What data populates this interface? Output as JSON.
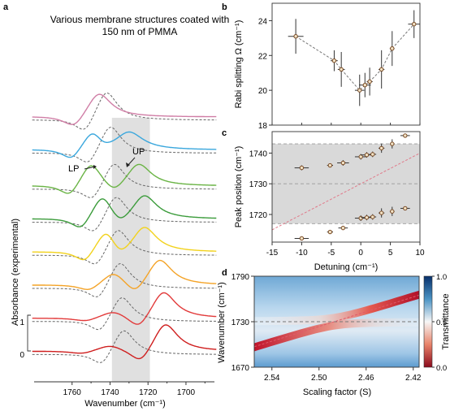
{
  "panels": {
    "a": "a",
    "b": "b",
    "c": "c",
    "d": "d"
  },
  "colors": {
    "pink": "#d07ea6",
    "blue": "#3aa7dd",
    "green": "#6ab445",
    "green2": "#3c9c3c",
    "yellow": "#f2d21c",
    "orange": "#f4a327",
    "red": "#e23a3a",
    "red2": "#cf1e1e",
    "dashed": "#666666",
    "band": "#d6d6d6",
    "marker": "#7a4a24",
    "trend": "#777777",
    "uncoupled": "#e07a8a",
    "cmap_low": "#b2182b",
    "cmap_mid": "#f7f7f7",
    "cmap_high": "#2166ac"
  },
  "chart_data": [
    {
      "panel": "a",
      "type": "line",
      "title": "Various membrane structures coated with\n150 nm of PMMA",
      "xlabel": "Wavenumber (cm⁻¹)",
      "ylabel": "Absorbance (experimental)",
      "xlim": [
        1780,
        1685
      ],
      "xticks": [
        1700,
        1720,
        1740,
        1760
      ],
      "scale_ticks": [
        "1",
        "0"
      ],
      "shaded_band": [
        1719,
        1739
      ],
      "annotations": [
        "LP",
        "UP"
      ],
      "series": [
        {
          "color": "pink",
          "offset": 8.0,
          "solid_peaks": [
            [
              1746,
              1.0,
              8
            ]
          ],
          "dashed_peaks": [
            [
              1742,
              1.2,
              7
            ]
          ]
        },
        {
          "color": "blue",
          "offset": 6.9,
          "solid_peaks": [
            [
              1730,
              0.7,
              9
            ],
            [
              1749,
              0.9,
              7
            ]
          ],
          "dashed_peaks": [
            [
              1740,
              1.15,
              7
            ]
          ]
        },
        {
          "color": "green",
          "offset": 5.7,
          "solid_peaks": [
            [
              1725,
              0.9,
              8
            ],
            [
              1750,
              0.95,
              7
            ]
          ],
          "dashed_peaks": [
            [
              1738,
              1.1,
              7
            ]
          ]
        },
        {
          "color": "green2",
          "offset": 4.6,
          "solid_peaks": [
            [
              1722,
              0.95,
              8
            ],
            [
              1744,
              1.0,
              7
            ]
          ],
          "dashed_peaks": [
            [
              1737,
              1.1,
              7
            ]
          ]
        },
        {
          "color": "yellow",
          "offset": 3.5,
          "solid_peaks": [
            [
              1722,
              1.0,
              8
            ],
            [
              1742,
              0.95,
              7
            ]
          ],
          "dashed_peaks": [
            [
              1736,
              1.1,
              7
            ]
          ]
        },
        {
          "color": "orange",
          "offset": 2.4,
          "solid_peaks": [
            [
              1714,
              1.05,
              8
            ],
            [
              1738,
              0.55,
              8
            ]
          ],
          "dashed_peaks": [
            [
              1735,
              1.1,
              7
            ]
          ]
        },
        {
          "color": "red",
          "offset": 1.3,
          "solid_peaks": [
            [
              1712,
              1.1,
              8
            ],
            [
              1738,
              0.3,
              9
            ]
          ],
          "dashed_peaks": [
            [
              1734,
              1.05,
              7
            ]
          ]
        },
        {
          "color": "red2",
          "offset": 0.2,
          "solid_peaks": [
            [
              1711,
              1.15,
              8
            ],
            [
              1740,
              0.25,
              9
            ]
          ],
          "dashed_peaks": [
            [
              1733,
              1.05,
              7
            ]
          ]
        }
      ]
    },
    {
      "panel": "b",
      "type": "scatter",
      "ylabel": "Rabi splitting Ω (cm⁻¹)",
      "xlim": [
        -15,
        10
      ],
      "ylim": [
        18,
        25
      ],
      "yticks": [
        18,
        20,
        22,
        24
      ],
      "points": [
        {
          "x": -11.0,
          "y": 23.1,
          "xerr": 1.3,
          "yerr": 1.0
        },
        {
          "x": -4.5,
          "y": 21.7,
          "xerr": 0.6,
          "yerr": 0.6
        },
        {
          "x": -3.3,
          "y": 21.2,
          "xerr": 0.6,
          "yerr": 1.0
        },
        {
          "x": -0.2,
          "y": 20.0,
          "xerr": 0.8,
          "yerr": 0.9
        },
        {
          "x": 0.7,
          "y": 20.3,
          "xerr": 1.0,
          "yerr": 0.7
        },
        {
          "x": 1.5,
          "y": 20.5,
          "xerr": 0.5,
          "yerr": 0.8
        },
        {
          "x": 3.5,
          "y": 21.2,
          "xerr": 0.5,
          "yerr": 1.1
        },
        {
          "x": 5.3,
          "y": 22.4,
          "xerr": 0.4,
          "yerr": 1.0
        },
        {
          "x": 9.0,
          "y": 23.8,
          "xerr": 1.0,
          "yerr": 0.8
        }
      ]
    },
    {
      "panel": "c",
      "type": "scatter",
      "xlabel": "Detuning (cm⁻¹)",
      "ylabel": "Peak position (cm⁻¹)",
      "xlim": [
        -15,
        10
      ],
      "ylim": [
        1711,
        1747
      ],
      "xticks": [
        -15,
        -10,
        -5,
        0,
        5,
        10
      ],
      "yticks": [
        1720,
        1730,
        1740
      ],
      "shaded_band": [
        1717,
        1743
      ],
      "upper": [
        {
          "x": -10.0,
          "y": 1735.2,
          "xerr": 1.2,
          "yerr": 0.8
        },
        {
          "x": -5.2,
          "y": 1736.0,
          "xerr": 0.5,
          "yerr": 0.4
        },
        {
          "x": -3.0,
          "y": 1736.8,
          "xerr": 1.0,
          "yerr": 0.9
        },
        {
          "x": 0.0,
          "y": 1738.8,
          "xerr": 1.0,
          "yerr": 0.9
        },
        {
          "x": 1.0,
          "y": 1739.4,
          "xerr": 1.0,
          "yerr": 0.9
        },
        {
          "x": 2.0,
          "y": 1739.6,
          "xerr": 0.6,
          "yerr": 0.9
        },
        {
          "x": 3.5,
          "y": 1741.6,
          "xerr": 0.5,
          "yerr": 1.5
        },
        {
          "x": 5.3,
          "y": 1743.0,
          "xerr": 0.4,
          "yerr": 1.5
        },
        {
          "x": 7.5,
          "y": 1745.7,
          "xerr": 0.8,
          "yerr": 0.5
        }
      ],
      "lower": [
        {
          "x": -10.0,
          "y": 1712.2,
          "xerr": 1.2,
          "yerr": 0.5
        },
        {
          "x": -5.2,
          "y": 1714.3,
          "xerr": 0.5,
          "yerr": 0.6
        },
        {
          "x": -3.0,
          "y": 1715.6,
          "xerr": 0.8,
          "yerr": 0.6
        },
        {
          "x": 0.0,
          "y": 1718.8,
          "xerr": 1.0,
          "yerr": 0.9
        },
        {
          "x": 1.0,
          "y": 1719.0,
          "xerr": 1.0,
          "yerr": 0.9
        },
        {
          "x": 2.0,
          "y": 1719.2,
          "xerr": 0.6,
          "yerr": 0.9
        },
        {
          "x": 3.5,
          "y": 1720.5,
          "xerr": 0.5,
          "yerr": 1.5
        },
        {
          "x": 5.3,
          "y": 1721.0,
          "xerr": 0.4,
          "yerr": 1.5
        },
        {
          "x": 7.5,
          "y": 1722.0,
          "xerr": 0.8,
          "yerr": 0.6
        }
      ],
      "reference_line": 1730,
      "uncoupled_line": [
        [
          -15,
          1715
        ],
        [
          10,
          1740
        ]
      ]
    },
    {
      "panel": "d",
      "type": "heatmap",
      "xlabel": "Scaling factor (S)",
      "ylabel": "Wavenumber (cm⁻¹)",
      "colorbar_label": "Transmittance",
      "xlim": [
        2.555,
        2.415
      ],
      "ylim": [
        1670,
        1790
      ],
      "xticks": [
        "2.54",
        "2.50",
        "2.46",
        "2.42"
      ],
      "yticks": [
        "1670",
        "1730",
        "1790"
      ],
      "colorbar_ticks": [
        "1.0",
        "0.5",
        "0.0"
      ],
      "reference_line": 1730,
      "uncoupled_line": [
        [
          2.555,
          1697
        ],
        [
          2.415,
          1765
        ]
      ]
    }
  ]
}
